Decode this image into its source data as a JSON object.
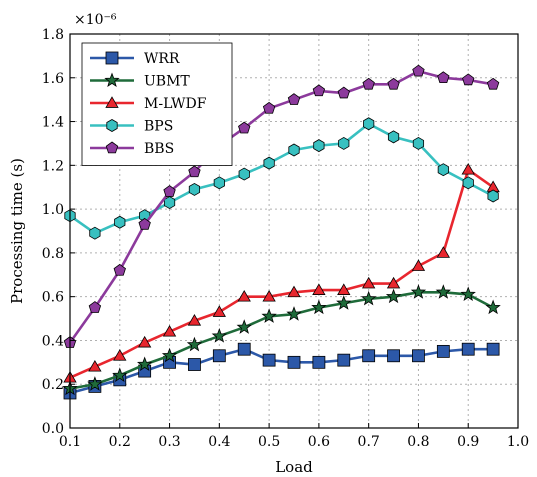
{
  "chart_data": {
    "type": "line",
    "xlabel": "Load",
    "ylabel": "Processing time (s)",
    "scale_label": "×10⁻⁶",
    "xlim": [
      0.1,
      1.0
    ],
    "ylim": [
      0.0,
      1.8
    ],
    "xticks": [
      "0.1",
      "0.2",
      "0.3",
      "0.4",
      "0.5",
      "0.6",
      "0.7",
      "0.8",
      "0.9",
      "1.0"
    ],
    "yticks": [
      "0.0",
      "0.2",
      "0.4",
      "0.6",
      "0.8",
      "1.0",
      "1.2",
      "1.4",
      "1.6",
      "1.8"
    ],
    "grid": true,
    "legend_position": "top-left",
    "x": [
      0.1,
      0.15,
      0.2,
      0.25,
      0.3,
      0.35,
      0.4,
      0.45,
      0.5,
      0.55,
      0.6,
      0.65,
      0.7,
      0.75,
      0.8,
      0.85,
      0.9,
      0.95
    ],
    "series": [
      {
        "name": "WRR",
        "color": "#2c58a8",
        "marker": "square",
        "values": [
          0.16,
          0.19,
          0.22,
          0.26,
          0.3,
          0.29,
          0.33,
          0.36,
          0.31,
          0.3,
          0.3,
          0.31,
          0.33,
          0.33,
          0.33,
          0.35,
          0.36,
          0.36
        ]
      },
      {
        "name": "UBMT",
        "color": "#1f6b3a",
        "marker": "star",
        "values": [
          0.18,
          0.2,
          0.24,
          0.29,
          0.33,
          0.38,
          0.42,
          0.46,
          0.51,
          0.52,
          0.55,
          0.57,
          0.59,
          0.6,
          0.62,
          0.62,
          0.61,
          0.55
        ]
      },
      {
        "name": "M-LWDF",
        "color": "#e8262e",
        "marker": "triangle",
        "values": [
          0.23,
          0.28,
          0.33,
          0.39,
          0.44,
          0.49,
          0.53,
          0.6,
          0.6,
          0.62,
          0.63,
          0.63,
          0.66,
          0.66,
          0.74,
          0.8,
          1.18,
          1.1
        ]
      },
      {
        "name": "BPS",
        "color": "#38c0c0",
        "marker": "hexagon",
        "values": [
          0.97,
          0.89,
          0.94,
          0.97,
          1.03,
          1.09,
          1.12,
          1.16,
          1.21,
          1.27,
          1.29,
          1.3,
          1.39,
          1.33,
          1.3,
          1.18,
          1.12,
          1.06
        ]
      },
      {
        "name": "BBS",
        "color": "#8c3a9c",
        "marker": "pentagon",
        "values": [
          0.39,
          0.55,
          0.72,
          0.93,
          1.08,
          1.17,
          1.29,
          1.37,
          1.46,
          1.5,
          1.54,
          1.53,
          1.57,
          1.57,
          1.63,
          1.6,
          1.59,
          1.57
        ]
      }
    ]
  }
}
